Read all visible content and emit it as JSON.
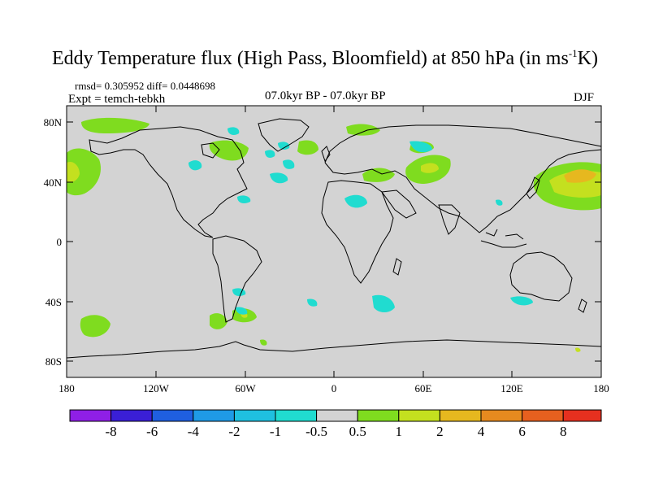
{
  "title": {
    "main": "Eddy Temperature flux (High Pass, Bloomfield) at 850 hPa (in ms",
    "superscript": "-1",
    "end": "K)"
  },
  "stats": "rmsd= 0.305952  diff= 0.0448698",
  "expt": "Expt = temch-tebkh",
  "period": "07.0kyr BP - 07.0kyr BP",
  "season": "DJF",
  "axes": {
    "lat_labels": [
      "80N",
      "40N",
      "0",
      "40S",
      "80S"
    ],
    "lon_labels": [
      "180",
      "120W",
      "60W",
      "0",
      "60E",
      "120E",
      "180"
    ]
  },
  "colorbar": {
    "labels": [
      "-8",
      "-6",
      "-4",
      "-2",
      "-1",
      "-0.5",
      "0.5",
      "1",
      "2",
      "4",
      "6",
      "8"
    ],
    "colors": [
      "#8f1fe6",
      "#3a1fd6",
      "#1f5fe0",
      "#1f9ae6",
      "#1fc0e0",
      "#20dcd0",
      "#d3d3d3",
      "#7fdc1f",
      "#c4e01f",
      "#e6b81f",
      "#e68a1f",
      "#e6601f",
      "#e6301f"
    ]
  },
  "colors": {
    "land_background": "#d3d3d3",
    "positive_light": "#7fdc1f",
    "positive_mid": "#c4e01f",
    "positive_high": "#e6b81f",
    "negative_light": "#20dcd0",
    "coast": "#000000"
  }
}
